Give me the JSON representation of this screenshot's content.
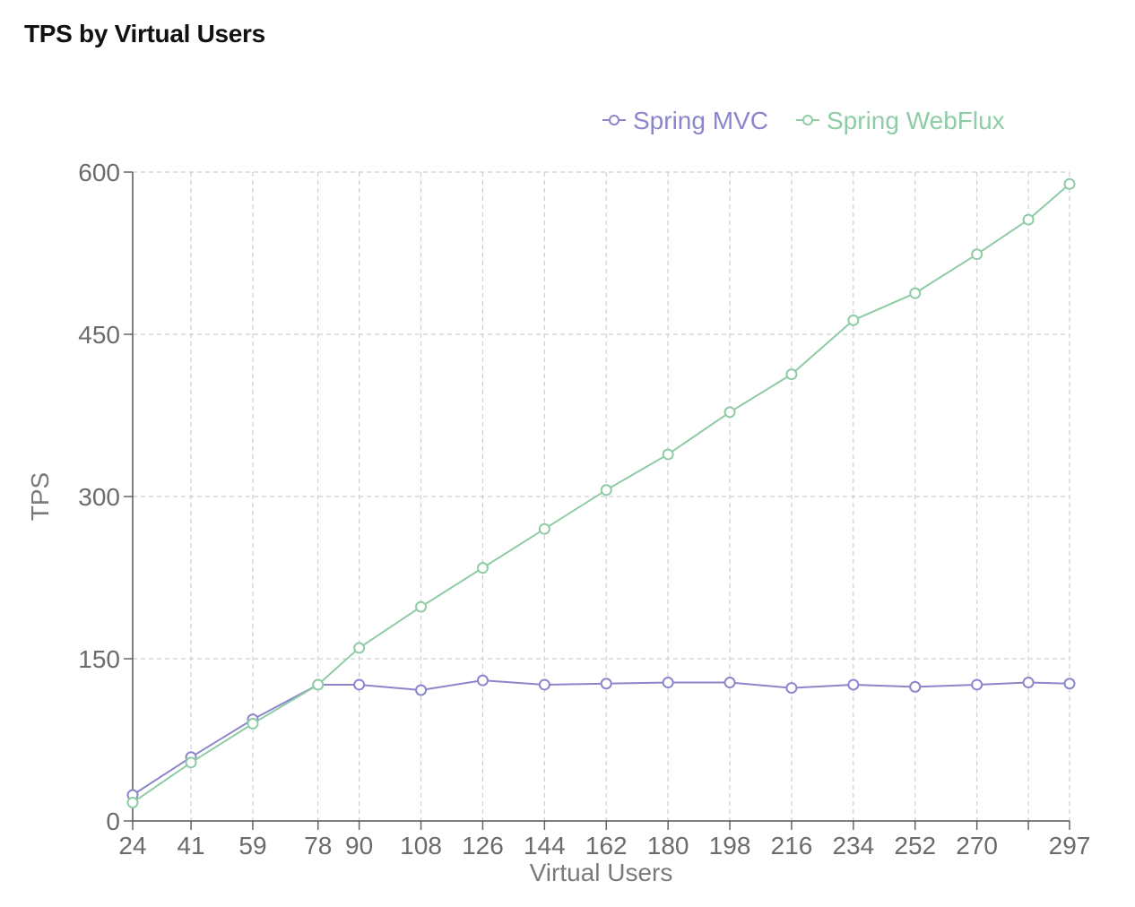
{
  "title": "TPS by Virtual Users",
  "chart_data": {
    "type": "line",
    "title": "TPS by Virtual Users",
    "xlabel": "Virtual Users",
    "ylabel": "TPS",
    "ylim": [
      0,
      600
    ],
    "yticks": [
      0,
      150,
      300,
      450,
      600
    ],
    "x": [
      24,
      41,
      59,
      78,
      90,
      108,
      126,
      144,
      162,
      180,
      198,
      216,
      234,
      252,
      270,
      285,
      297
    ],
    "xtick_labels": [
      "24",
      "41",
      "59",
      "78",
      "90",
      "108",
      "126",
      "144",
      "162",
      "180",
      "198",
      "216",
      "234",
      "252",
      "270",
      "",
      "297"
    ],
    "grid": true,
    "legend_position": "top-right",
    "series": [
      {
        "name": "Spring MVC",
        "color": "#8b85cc",
        "values": [
          24,
          59,
          94,
          126,
          126,
          121,
          130,
          126,
          127,
          128,
          128,
          123,
          126,
          124,
          126,
          128,
          127
        ]
      },
      {
        "name": "Spring WebFlux",
        "color": "#8fcca5",
        "values": [
          17,
          54,
          90,
          126,
          160,
          198,
          234,
          270,
          306,
          339,
          378,
          413,
          463,
          488,
          524,
          556,
          589
        ]
      }
    ]
  }
}
